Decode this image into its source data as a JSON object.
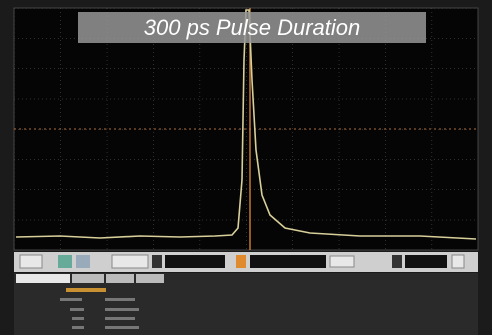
{
  "title": "300 ps Pulse Duration"
}
